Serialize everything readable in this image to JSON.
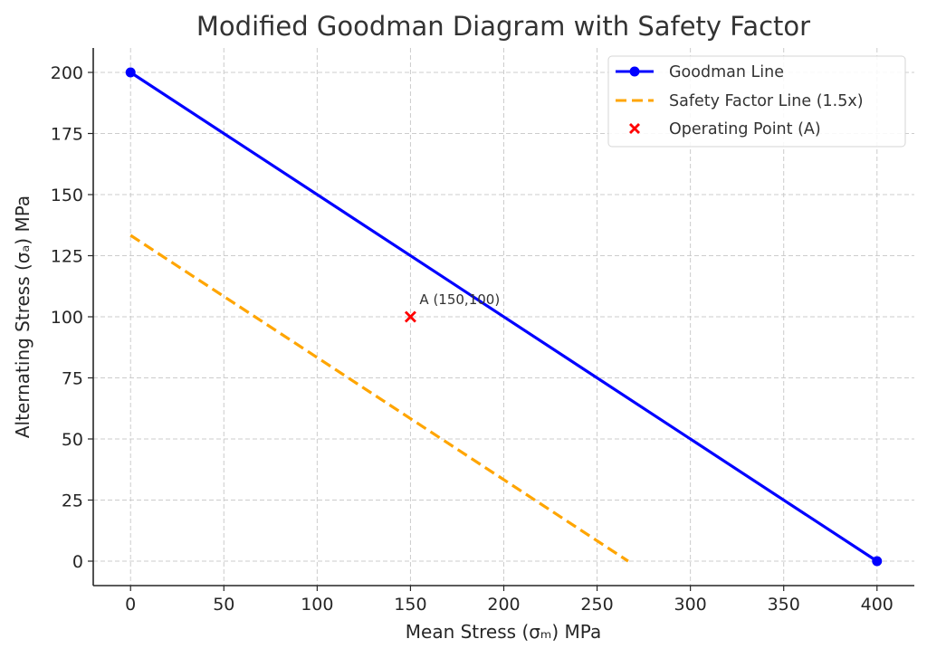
{
  "chart_data": {
    "type": "line",
    "title": "Modified Goodman Diagram with Safety Factor",
    "xlabel": "Mean Stress (σₘ) MPa",
    "ylabel": "Alternating Stress (σₐ) MPa",
    "xlim": [
      -20,
      420
    ],
    "ylim": [
      -10,
      210
    ],
    "xticks": [
      0,
      50,
      100,
      150,
      200,
      250,
      300,
      350,
      400
    ],
    "yticks": [
      0,
      25,
      50,
      75,
      100,
      125,
      150,
      175,
      200
    ],
    "xtick_labels": [
      "0",
      "50",
      "100",
      "150",
      "200",
      "250",
      "300",
      "350",
      "400"
    ],
    "ytick_labels": [
      "0",
      "25",
      "50",
      "75",
      "100",
      "125",
      "150",
      "175",
      "200"
    ],
    "grid": true,
    "legend_position": "top-right",
    "series": [
      {
        "name": "Goodman Line",
        "style": "solid-with-markers",
        "color": "#0000ff",
        "x": [
          0,
          400
        ],
        "y": [
          200,
          0
        ]
      },
      {
        "name": "Safety Factor Line (1.5x)",
        "style": "dashed",
        "color": "#ffa500",
        "x": [
          0,
          266.67
        ],
        "y": [
          133.33,
          0
        ]
      },
      {
        "name": "Operating Point (A)",
        "style": "x-marker",
        "color": "#ff0000",
        "x": [
          150
        ],
        "y": [
          100
        ]
      }
    ],
    "annotations": [
      {
        "text": "A (150,100)",
        "x": 150,
        "y": 100
      }
    ]
  }
}
